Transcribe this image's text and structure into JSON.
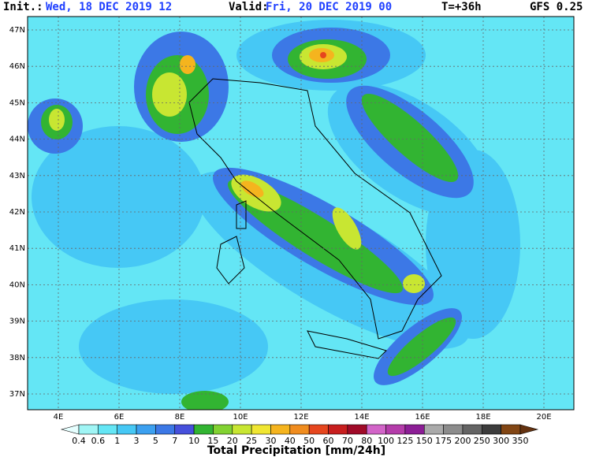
{
  "header": {
    "init_label": "Init.:",
    "init_value": "Wed, 18 DEC 2019  12",
    "valid_label": "Valid:",
    "valid_value": "Fri, 20 DEC 2019  00",
    "lead": "T=+36h",
    "model": "GFS 0.25"
  },
  "map": {
    "lat_labels": [
      "47N",
      "46N",
      "45N",
      "44N",
      "43N",
      "42N",
      "41N",
      "40N",
      "39N",
      "38N",
      "37N"
    ],
    "lon_labels": [
      "4E",
      "6E",
      "8E",
      "10E",
      "12E",
      "14E",
      "16E",
      "18E",
      "20E"
    ]
  },
  "colorbar": {
    "title": "Total Precipitation [mm/24h]",
    "labels": [
      "0.4",
      "0.6",
      "1",
      "3",
      "5",
      "7",
      "10",
      "15",
      "20",
      "25",
      "30",
      "40",
      "50",
      "60",
      "70",
      "80",
      "100",
      "125",
      "150",
      "175",
      "200",
      "250",
      "300",
      "350"
    ],
    "colors": [
      "#e6ffff",
      "#a0f5f5",
      "#64e6f5",
      "#46c8f5",
      "#3ca0f0",
      "#3c78e6",
      "#4650dc",
      "#32b432",
      "#82d232",
      "#c8e632",
      "#f0e632",
      "#f5b41e",
      "#f08c1e",
      "#e6461e",
      "#c81e1e",
      "#a00a28",
      "#d264c8",
      "#b43caa",
      "#8c1e96",
      "#aaaaaa",
      "#8c8c8c",
      "#646464",
      "#3c3c3c",
      "#824614",
      "#643210"
    ]
  }
}
